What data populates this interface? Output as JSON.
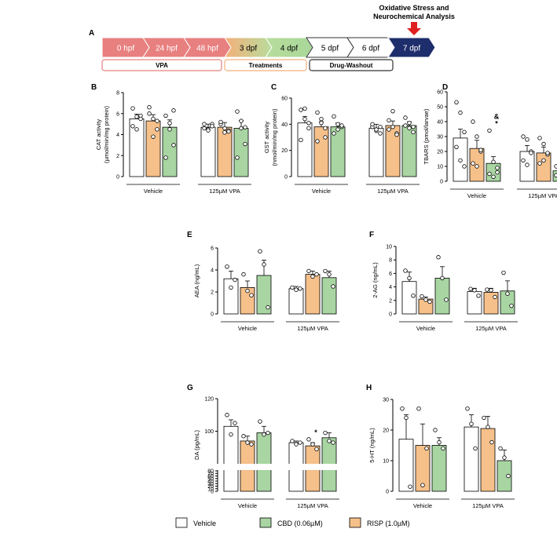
{
  "timeline": {
    "panel": "A",
    "title_line1": "Oxidative Stress and",
    "title_line2": "Neurochemical Analysis",
    "steps": [
      {
        "label": "0 hpf",
        "color": "#e88080"
      },
      {
        "label": "24 hpf",
        "color": "#e88080"
      },
      {
        "label": "48 hpf",
        "color": "#e88080"
      },
      {
        "label": "3 dpf",
        "color": "#a8d89a"
      },
      {
        "label": "4 dpf",
        "color": "#a8d89a"
      },
      {
        "label": "5 dpf",
        "color": "#ffffff"
      },
      {
        "label": "6 dpf",
        "color": "#ffffff"
      },
      {
        "label": "7 dpf",
        "color": "#1e2d6b"
      }
    ],
    "bars": [
      "VPA",
      "Treatments",
      "Drug-Washout"
    ]
  },
  "groups": [
    "Vehicle",
    "125µM VPA"
  ],
  "legend": [
    {
      "label": "Vehicle",
      "color": "#ffffff"
    },
    {
      "label": "CBD (0.06µM)",
      "color": "#a8d5a2"
    },
    {
      "label": "RISP (1.0µM)",
      "color": "#f6c08a"
    }
  ],
  "colors": {
    "vehicle": "#ffffff",
    "risp": "#f6c08a",
    "cbd": "#a8d5a2",
    "red": "#e02020"
  },
  "chart_data": [
    {
      "panel": "B",
      "type": "bar",
      "ylabel_line1": "CAT activity",
      "ylabel_line2": "(µmol/min/mg protein)",
      "ylim": [
        0,
        8
      ],
      "ticks": [
        0,
        2,
        4,
        6,
        8
      ],
      "grid": false,
      "series": [
        {
          "values": [
            5.5,
            4.7
          ]
        },
        {
          "values": [
            5.3,
            4.7
          ]
        },
        {
          "values": [
            4.7,
            4.6
          ]
        }
      ],
      "errors": [
        [
          0.45,
          0.3
        ],
        [
          0.6,
          0.45
        ],
        [
          0.7,
          0.75
        ]
      ],
      "points": [
        [
          [
            6.5,
            5.7,
            5.8,
            4.8,
            4.5,
            5.5
          ],
          [
            5.0,
            4.5,
            5.0,
            4.6,
            4.4,
            4.8
          ]
        ],
        [
          [
            6.6,
            5.5,
            4.5,
            6.0,
            3.8,
            5.3
          ],
          [
            5.0,
            4.2,
            4.4,
            5.2,
            4.6,
            4.3
          ]
        ],
        [
          [
            5.8,
            5.1,
            3.0,
            1.8,
            4.5,
            6.3
          ],
          [
            6.2,
            5.3,
            3.1,
            1.8,
            4.6,
            4.7
          ]
        ]
      ],
      "annotations": [
        [
          "",
          ""
        ],
        [
          "",
          ""
        ],
        [
          "",
          ""
        ]
      ]
    },
    {
      "panel": "C",
      "type": "bar",
      "ylabel_line1": "GST activity",
      "ylabel_line2": "(nmol/min/mg protein)",
      "ylim": [
        0,
        60
      ],
      "ticks": [
        0,
        20,
        40,
        60
      ],
      "grid": false,
      "series": [
        {
          "values": [
            41,
            37
          ]
        },
        {
          "values": [
            38,
            39
          ]
        },
        {
          "values": [
            38,
            39
          ]
        }
      ],
      "errors": [
        [
          5,
          3
        ],
        [
          4,
          3.5
        ],
        [
          3,
          3
        ]
      ],
      "points": [
        [
          [
            51,
            44,
            37,
            28,
            52,
            41
          ],
          [
            38,
            35,
            33,
            40,
            36,
            38
          ]
        ],
        [
          [
            49,
            41,
            30,
            27,
            44,
            37
          ],
          [
            43,
            50,
            33,
            36,
            38,
            32
          ]
        ],
        [
          [
            46,
            36,
            38,
            33,
            40,
            39
          ],
          [
            45,
            41,
            34,
            39,
            37,
            38
          ]
        ]
      ],
      "annotations": [
        [
          "",
          ""
        ],
        [
          "",
          ""
        ],
        [
          "",
          ""
        ]
      ]
    },
    {
      "panel": "D",
      "type": "bar",
      "ylabel_line1": "TBARS (pmol/larvae)",
      "ylabel_line2": "",
      "ylim": [
        0,
        60
      ],
      "ticks": [
        0,
        10,
        20,
        30,
        40,
        50,
        60
      ],
      "grid": false,
      "series": [
        {
          "values": [
            29,
            20
          ]
        },
        {
          "values": [
            22,
            19
          ]
        },
        {
          "values": [
            12,
            7
          ]
        }
      ],
      "errors": [
        [
          6,
          4
        ],
        [
          5.5,
          4
        ],
        [
          4.5,
          1.5
        ]
      ],
      "points": [
        [
          [
            53,
            46,
            33,
            23,
            14,
            10
          ],
          [
            30,
            28,
            20,
            14,
            11,
            19
          ]
        ],
        [
          [
            40,
            30,
            20,
            12,
            10,
            21
          ],
          [
            29,
            25,
            18,
            12,
            14,
            19
          ]
        ],
        [
          [
            34,
            13,
            9,
            5,
            3,
            6
          ],
          [
            10,
            8,
            5,
            4,
            6,
            8
          ]
        ]
      ],
      "annotations": [
        [
          "",
          ""
        ],
        [
          "",
          ""
        ],
        [
          "&\n*",
          "&\n*"
        ]
      ]
    },
    {
      "panel": "E",
      "type": "bar",
      "ylabel_line1": "AEA (ng/mL)",
      "ylabel_line2": "",
      "ylim": [
        0,
        6
      ],
      "ticks": [
        0,
        2,
        4,
        6
      ],
      "grid": false,
      "series": [
        {
          "values": [
            3.2,
            2.3
          ]
        },
        {
          "values": [
            2.4,
            3.6
          ]
        },
        {
          "values": [
            3.5,
            3.3
          ]
        }
      ],
      "errors": [
        [
          0.7,
          0.2
        ],
        [
          0.6,
          0.3
        ],
        [
          1.4,
          0.6
        ]
      ],
      "points": [
        [
          [
            4.3,
            2.4,
            3.1
          ],
          [
            2.4,
            2.2,
            2.3
          ]
        ],
        [
          [
            3.6,
            2.1,
            1.7
          ],
          [
            3.9,
            3.4,
            3.6
          ]
        ],
        [
          [
            5.7,
            4.5,
            0.6
          ],
          [
            3.9,
            3.6,
            2.5
          ]
        ]
      ],
      "annotations": [
        [
          "",
          ""
        ],
        [
          "",
          ""
        ],
        [
          "",
          ""
        ]
      ]
    },
    {
      "panel": "F",
      "type": "bar",
      "ylabel_line1": "2-AG (ng/mL)",
      "ylabel_line2": "",
      "ylim": [
        0,
        10
      ],
      "ticks": [
        0,
        2,
        4,
        6,
        8,
        10
      ],
      "grid": false,
      "series": [
        {
          "values": [
            4.8,
            3.3
          ]
        },
        {
          "values": [
            2.2,
            3.2
          ]
        },
        {
          "values": [
            5.3,
            3.4
          ]
        }
      ],
      "errors": [
        [
          1.4,
          0.5
        ],
        [
          0.3,
          0.6
        ],
        [
          1.7,
          1.5
        ]
      ],
      "points": [
        [
          [
            6.4,
            5.3,
            2.7
          ],
          [
            3.7,
            3.5,
            2.7
          ]
        ],
        [
          [
            2.6,
            2.1,
            1.8
          ],
          [
            3.6,
            3.5,
            2.5
          ]
        ],
        [
          [
            8.4,
            5.3,
            2.1
          ],
          [
            6.1,
            3.0,
            1.2
          ]
        ]
      ],
      "annotations": [
        [
          "",
          ""
        ],
        [
          "",
          ""
        ],
        [
          "",
          ""
        ]
      ]
    },
    {
      "panel": "G",
      "type": "bar",
      "ylabel_line1": "DA (pg/mL)",
      "ylabel_line2": "",
      "ylim": [
        0,
        120
      ],
      "ticks": [
        0,
        10,
        20,
        30,
        40,
        50,
        60,
        70,
        80,
        100,
        120
      ],
      "grid": false,
      "broken_axis": {
        "lower": [
          0,
          80
        ],
        "upper": [
          80,
          120
        ]
      },
      "series": [
        {
          "values": [
            103,
            93
          ]
        },
        {
          "values": [
            94,
            91
          ]
        },
        {
          "values": [
            99,
            96
          ]
        }
      ],
      "errors": [
        [
          4,
          1
        ],
        [
          3,
          2
        ],
        [
          4,
          3
        ]
      ],
      "points": [
        [
          [
            110,
            98,
            105
          ],
          [
            94,
            92,
            93
          ]
        ],
        [
          [
            97,
            93,
            92
          ],
          [
            95,
            92,
            89
          ]
        ],
        [
          [
            106,
            98,
            99
          ],
          [
            99,
            94,
            93
          ]
        ]
      ],
      "annotations": [
        [
          "",
          ""
        ],
        [
          "",
          "*"
        ],
        [
          "",
          ""
        ]
      ]
    },
    {
      "panel": "H",
      "type": "bar",
      "ylabel_line1": "5-HT (ng/mL)",
      "ylabel_line2": "",
      "ylim": [
        0,
        30
      ],
      "ticks": [
        0,
        10,
        20,
        30
      ],
      "grid": false,
      "series": [
        {
          "values": [
            17,
            21
          ]
        },
        {
          "values": [
            15,
            20.5
          ]
        },
        {
          "values": [
            15,
            10
          ]
        }
      ],
      "errors": [
        [
          8,
          4
        ],
        [
          7,
          4
        ],
        [
          2.5,
          3.5
        ]
      ],
      "points": [
        [
          [
            27,
            24,
            1.5
          ],
          [
            27,
            22,
            14
          ]
        ],
        [
          [
            27,
            2,
            14
          ],
          [
            24,
            21,
            16
          ]
        ],
        [
          [
            20,
            16,
            14
          ],
          [
            14,
            11,
            5
          ]
        ]
      ],
      "annotations": [
        [
          "",
          ""
        ],
        [
          "",
          ""
        ],
        [
          "",
          ""
        ]
      ]
    }
  ]
}
